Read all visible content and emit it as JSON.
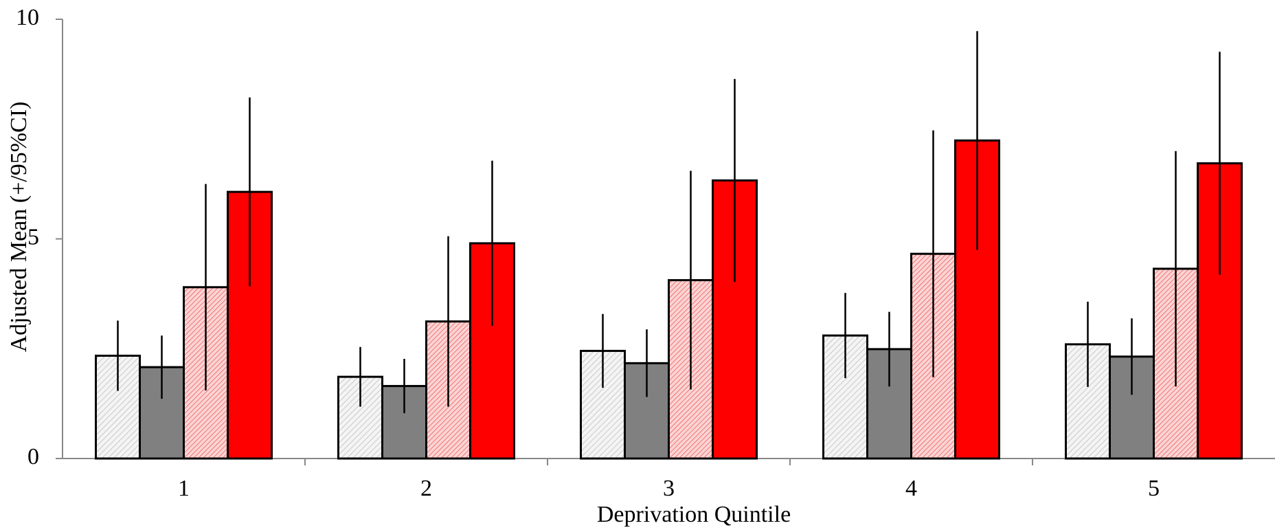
{
  "chart_data": {
    "type": "bar",
    "x_label": "Deprivation Quintile",
    "y_label": "Adjusted Mean (+/95%CI)",
    "categories": [
      "1",
      "2",
      "3",
      "4",
      "5"
    ],
    "series": [
      {
        "color": "#e6e6e6",
        "hatch": true,
        "values": [
          2.34,
          1.86,
          2.45,
          2.8,
          2.6
        ],
        "errors": [
          0.8,
          0.68,
          0.84,
          0.97,
          0.97
        ]
      },
      {
        "color": "#808080",
        "hatch": false,
        "values": [
          2.08,
          1.65,
          2.17,
          2.49,
          2.32
        ],
        "errors": [
          0.72,
          0.62,
          0.77,
          0.85,
          0.87
        ]
      },
      {
        "color": "#f4a0a0",
        "hatch": true,
        "values": [
          3.9,
          3.12,
          4.06,
          4.66,
          4.32
        ],
        "errors": [
          2.35,
          1.94,
          2.49,
          2.81,
          2.68
        ]
      },
      {
        "color": "#ff0000",
        "hatch": false,
        "values": [
          6.07,
          4.9,
          6.33,
          7.24,
          6.72
        ],
        "errors": [
          2.15,
          1.88,
          2.31,
          2.49,
          2.54
        ]
      }
    ],
    "ylim": [
      0,
      10
    ],
    "yticks": [
      0,
      5,
      10
    ],
    "grid": false
  }
}
